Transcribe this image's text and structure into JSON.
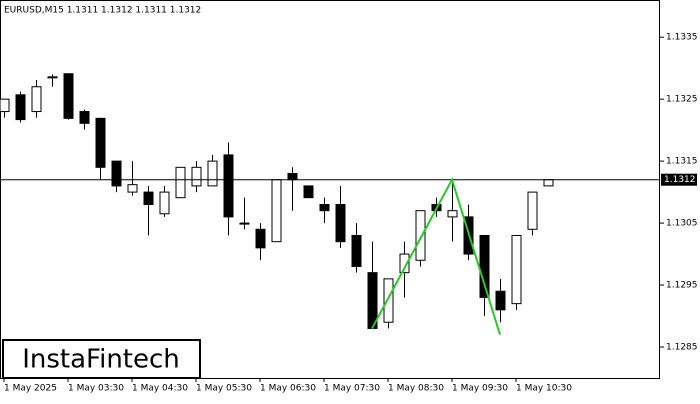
{
  "chart_data": {
    "type": "candlestick",
    "title": "EURUSD,M15  1.1311 1.1312 1.1311 1.1312",
    "logo": "InstaFintech",
    "categories": [
      "1 May 2025",
      null,
      null,
      null,
      "1 May 03:30",
      null,
      null,
      null,
      "1 May 04:30",
      null,
      null,
      null,
      "1 May 05:30",
      null,
      null,
      null,
      "1 May 06:30",
      null,
      null,
      null,
      "1 May 07:30",
      null,
      null,
      null,
      "1 May 08:30",
      null,
      null,
      null,
      "1 May 09:30",
      null,
      null,
      null,
      "1 May 10:30",
      null,
      null
    ],
    "open": [
      1.1323,
      1.13257,
      1.1323,
      1.13286,
      1.13291,
      1.1323,
      1.13219,
      1.1315,
      1.131,
      1.131,
      1.13065,
      1.13091,
      1.1311,
      1.1311,
      1.1316,
      1.1305,
      1.1304,
      1.1302,
      1.1313,
      1.1311,
      1.1308,
      1.1308,
      1.1303,
      1.1297,
      1.1289,
      1.1297,
      1.1299,
      1.1308,
      1.1306,
      1.1306,
      1.1303,
      1.1294,
      1.1292,
      1.1304,
      1.1311
    ],
    "high": [
      1.1325,
      1.13262,
      1.13281,
      1.1329,
      1.13291,
      1.13233,
      1.1322,
      1.1315,
      1.1315,
      1.1311,
      1.1311,
      1.1314,
      1.1315,
      1.1316,
      1.1318,
      1.13091,
      1.1305,
      1.1312,
      1.1314,
      1.1311,
      1.13091,
      1.1311,
      1.1305,
      1.1302,
      1.1296,
      1.1302,
      1.1307,
      1.13091,
      1.1312,
      1.1308,
      1.1303,
      1.1296,
      1.1303,
      1.131,
      1.1312
    ],
    "low": [
      1.1322,
      1.13212,
      1.1322,
      1.1327,
      1.13217,
      1.13201,
      1.1312,
      1.131,
      1.13094,
      1.1303,
      1.1306,
      1.13091,
      1.131,
      1.1311,
      1.1303,
      1.1304,
      1.1299,
      1.1302,
      1.1307,
      1.13091,
      1.1305,
      1.1301,
      1.1297,
      1.1288,
      1.1288,
      1.1293,
      1.1298,
      1.1306,
      1.1302,
      1.1299,
      1.129,
      1.1289,
      1.1291,
      1.1303,
      1.1311
    ],
    "close": [
      1.1325,
      1.13217,
      1.1327,
      1.13286,
      1.13219,
      1.13211,
      1.1314,
      1.1311,
      1.13112,
      1.1308,
      1.131,
      1.1314,
      1.1314,
      1.1315,
      1.1306,
      1.1305,
      1.1301,
      1.1312,
      1.1312,
      1.13091,
      1.1307,
      1.1302,
      1.1298,
      1.1288,
      1.1296,
      1.13,
      1.1307,
      1.1307,
      1.1307,
      1.13,
      1.1293,
      1.1291,
      1.1303,
      1.131,
      1.1312
    ],
    "up_color": "#ffffff",
    "down_color": "#000000",
    "ylim": [
      1.128,
      1.1341
    ],
    "yticks": [
      1.1335,
      1.1325,
      1.1315,
      1.1305,
      1.1295,
      1.1285
    ],
    "price_line": 1.1312,
    "pattern": {
      "color": "#22cc22",
      "x": [
        23,
        28,
        31
      ],
      "y": [
        1.1288,
        1.1312,
        1.1287
      ]
    }
  }
}
